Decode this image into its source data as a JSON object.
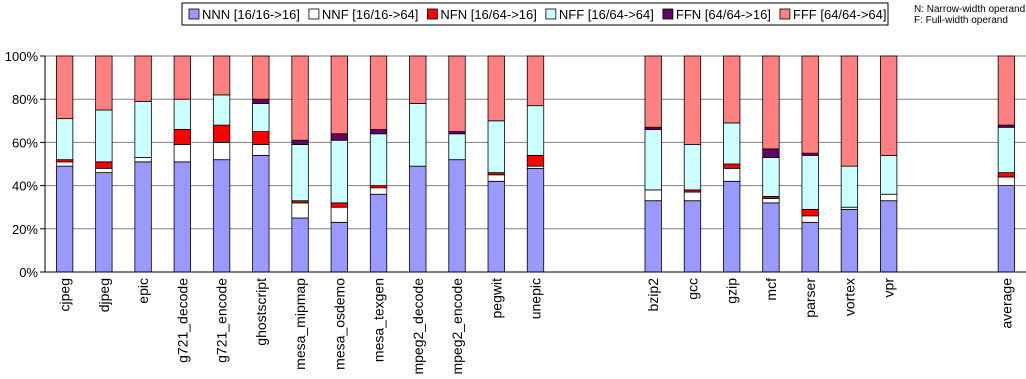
{
  "chart_data": {
    "type": "bar",
    "stacked": true,
    "y_format": "percent",
    "ylim": [
      0,
      100
    ],
    "yticks": [
      0,
      20,
      40,
      60,
      80,
      100
    ],
    "grid": true,
    "legend_position": "top",
    "annotations": [
      "N: Narrow-width operand",
      "F: Full-width operand"
    ],
    "categories": [
      "cjpeg",
      "djpeg",
      "epic",
      "g721_decode",
      "g721_encode",
      "ghostscript",
      "mesa_mipmap",
      "mesa_osdemo",
      "mesa_texgen",
      "mpeg2_decode",
      "mpeg2_encode",
      "pegwit",
      "unepic",
      "bzip2",
      "gcc",
      "gzip",
      "mcf",
      "parser",
      "vortex",
      "vpr",
      "average"
    ],
    "groups": [
      [
        0,
        12
      ],
      [
        13,
        19
      ],
      [
        20,
        20
      ]
    ],
    "series": [
      {
        "name": "NNN [16/16->16]",
        "color": "#9999ff",
        "values": [
          49,
          46,
          51,
          51,
          52,
          54,
          25,
          23,
          36,
          49,
          52,
          42,
          48,
          33,
          33,
          42,
          32,
          23,
          29,
          33,
          40
        ]
      },
      {
        "name": "NNF [16/16->64]",
        "color": "#ffffff",
        "values": [
          2,
          2,
          2,
          8,
          8,
          5,
          7,
          7,
          3,
          0,
          0,
          3,
          1,
          5,
          4,
          6,
          2,
          3,
          1,
          3,
          4
        ]
      },
      {
        "name": "NFN [16/64->16]",
        "color": "#ff0000",
        "values": [
          1,
          3,
          0,
          7,
          8,
          6,
          1,
          2,
          1,
          0,
          0,
          1,
          5,
          0,
          1,
          2,
          1,
          3,
          0,
          0,
          2
        ]
      },
      {
        "name": "NFF [16/64->64]",
        "color": "#ccffff",
        "values": [
          19,
          24,
          26,
          14,
          14,
          13,
          26,
          29,
          24,
          29,
          12,
          24,
          23,
          28,
          21,
          19,
          18,
          25,
          19,
          18,
          21
        ]
      },
      {
        "name": "FFN [64/64->16]",
        "color": "#660066",
        "values": [
          0,
          0,
          0,
          0,
          0,
          2,
          2,
          3,
          2,
          0,
          1,
          0,
          0,
          1,
          0,
          0,
          4,
          1,
          0,
          0,
          1
        ]
      },
      {
        "name": "FFF [64/64->64]",
        "color": "#ff8080",
        "values": [
          29,
          25,
          21,
          20,
          18,
          20,
          39,
          36,
          34,
          22,
          35,
          30,
          23,
          33,
          41,
          31,
          43,
          45,
          51,
          46,
          32
        ]
      }
    ]
  }
}
